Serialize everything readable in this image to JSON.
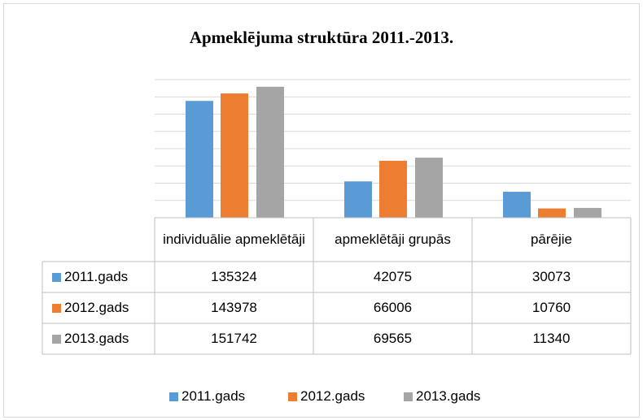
{
  "chart_data": {
    "type": "bar",
    "title": "Apmeklējuma struktūra 2011.-2013.",
    "categories": [
      "individuālie apmeklētāji",
      "apmeklētāji grupās",
      "pārējie"
    ],
    "series": [
      {
        "name": "2011.gads",
        "color": "#5b9bd5",
        "values": [
          135324,
          42075,
          30073
        ]
      },
      {
        "name": "2012.gads",
        "color": "#ed7d31",
        "values": [
          143978,
          66006,
          10760
        ]
      },
      {
        "name": "2013.gads",
        "color": "#a5a5a5",
        "values": [
          151742,
          69565,
          11340
        ]
      }
    ],
    "ylim": [
      0,
      160000
    ],
    "yticks": [
      0,
      20000,
      40000,
      60000,
      80000,
      100000,
      120000,
      140000,
      160000
    ],
    "grid": true
  }
}
